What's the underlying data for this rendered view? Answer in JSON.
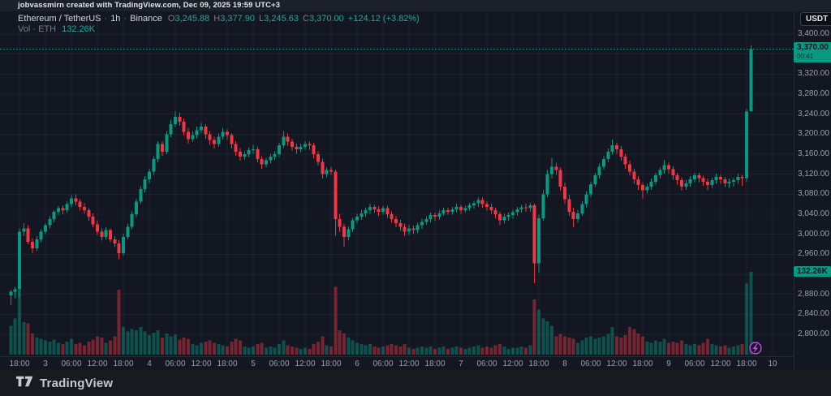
{
  "attribution": {
    "text": "jobvassmirn created with TradingView.com, Dec 09, 2025 19:59 UTC+3"
  },
  "legend": {
    "symbol": "Ethereum / TetherUS",
    "separator": "·",
    "interval": "1h",
    "exchange": "Binance",
    "ohlc": {
      "o_label": "O",
      "o": "3,245.88",
      "h_label": "H",
      "h": "3,377.90",
      "l_label": "L",
      "l": "3,245.63",
      "c_label": "C",
      "c": "3,370.00",
      "change": "+124.12 (+3.82%)"
    },
    "volume_row": {
      "label": "Vol · ETH",
      "value": "132.26K"
    }
  },
  "price_scale": {
    "currency_button": "USDT",
    "labels": [
      {
        "text": "3,400.00",
        "value": 3400
      },
      {
        "text": "3,320.00",
        "value": 3320
      },
      {
        "text": "3,280.00",
        "value": 3280
      },
      {
        "text": "3,240.00",
        "value": 3240
      },
      {
        "text": "3,200.00",
        "value": 3200
      },
      {
        "text": "3,160.00",
        "value": 3160
      },
      {
        "text": "3,120.00",
        "value": 3120
      },
      {
        "text": "3,080.00",
        "value": 3080
      },
      {
        "text": "3,040.00",
        "value": 3040
      },
      {
        "text": "3,000.00",
        "value": 3000
      },
      {
        "text": "2,960.00",
        "value": 2960
      },
      {
        "text": "2,920.00",
        "value": 2920
      },
      {
        "text": "2,880.00",
        "value": 2880
      },
      {
        "text": "2,840.00",
        "value": 2840
      },
      {
        "text": "2,800.00",
        "value": 2800
      }
    ]
  },
  "last_price_tag": {
    "price": "3,370.00",
    "countdown": "00:41",
    "value": 3370
  },
  "volume_tag": {
    "text": "132.26K",
    "value": 132.26
  },
  "time_scale": {
    "labels": [
      "18:00",
      "3",
      "06:00",
      "12:00",
      "18:00",
      "4",
      "06:00",
      "12:00",
      "18:00",
      "5",
      "06:00",
      "12:00",
      "18:00",
      "6",
      "06:00",
      "12:00",
      "18:00",
      "7",
      "06:00",
      "12:00",
      "18:00",
      "8",
      "06:00",
      "12:00",
      "18:00",
      "9",
      "06:00",
      "12:00",
      "18:00",
      "10"
    ]
  },
  "event_marker": {
    "icon": "lightning-icon",
    "color": "#b84fd6"
  },
  "footer": {
    "brand": "TradingView"
  },
  "colors": {
    "up": "#089981",
    "down": "#f23645",
    "accent_text": "#26a69a",
    "background": "#131722"
  },
  "chart_data": {
    "type": "candlestick",
    "title": "Ethereum / TetherUS · 1h · Binance",
    "symbol": "ETHUSDT",
    "exchange": "Binance",
    "interval": "1h",
    "x_start": "Dec 2 2025 16:00",
    "x_end": "Dec 9 2025 19:00",
    "price_axis_range": [
      2800,
      3400
    ],
    "grid": true,
    "volume_unit": "K ETH",
    "columns": [
      "open",
      "high",
      "low",
      "close",
      "volume_K"
    ],
    "last": {
      "open": 3245.88,
      "high": 3377.9,
      "low": 3245.63,
      "close": 3370.0,
      "change": "+124.12",
      "change_pct": "+3.82%",
      "volume": "132.26K",
      "countdown": "00:41"
    },
    "candles": [
      [
        2878,
        2888,
        2858,
        2885,
        46
      ],
      [
        2885,
        2895,
        2872,
        2890,
        58
      ],
      [
        2890,
        3012,
        2875,
        3005,
        103
      ],
      [
        3005,
        3022,
        2996,
        3012,
        52
      ],
      [
        3012,
        3018,
        2980,
        2985,
        50
      ],
      [
        2985,
        2992,
        2962,
        2972,
        34
      ],
      [
        2972,
        2996,
        2966,
        2990,
        27
      ],
      [
        2990,
        3010,
        2984,
        3005,
        25
      ],
      [
        3005,
        3022,
        3000,
        3018,
        23
      ],
      [
        3018,
        3036,
        3012,
        3030,
        21
      ],
      [
        3030,
        3048,
        3024,
        3045,
        24
      ],
      [
        3045,
        3056,
        3038,
        3052,
        19
      ],
      [
        3052,
        3058,
        3040,
        3048,
        17
      ],
      [
        3048,
        3065,
        3043,
        3060,
        21
      ],
      [
        3060,
        3078,
        3054,
        3072,
        25
      ],
      [
        3072,
        3080,
        3058,
        3065,
        17
      ],
      [
        3065,
        3070,
        3047,
        3055,
        19
      ],
      [
        3055,
        3062,
        3042,
        3048,
        15
      ],
      [
        3048,
        3052,
        3027,
        3035,
        21
      ],
      [
        3035,
        3042,
        3014,
        3020,
        24
      ],
      [
        3020,
        3028,
        2999,
        3005,
        29
      ],
      [
        3005,
        3012,
        2987,
        2995,
        27
      ],
      [
        2995,
        3015,
        2990,
        3008,
        19
      ],
      [
        3008,
        3012,
        2984,
        2990,
        23
      ],
      [
        2990,
        2996,
        2974,
        2982,
        29
      ],
      [
        2982,
        2988,
        2950,
        2962,
        104
      ],
      [
        2962,
        3001,
        2957,
        2995,
        44
      ],
      [
        2995,
        3021,
        2990,
        3015,
        37
      ],
      [
        3015,
        3046,
        3010,
        3040,
        41
      ],
      [
        3040,
        3071,
        3034,
        3065,
        39
      ],
      [
        3065,
        3096,
        3060,
        3090,
        44
      ],
      [
        3090,
        3116,
        3084,
        3110,
        37
      ],
      [
        3110,
        3131,
        3102,
        3125,
        31
      ],
      [
        3125,
        3156,
        3119,
        3150,
        35
      ],
      [
        3150,
        3186,
        3144,
        3180,
        39
      ],
      [
        3180,
        3186,
        3157,
        3165,
        27
      ],
      [
        3165,
        3206,
        3160,
        3200,
        34
      ],
      [
        3200,
        3229,
        3194,
        3220,
        29
      ],
      [
        3220,
        3246,
        3214,
        3235,
        32
      ],
      [
        3235,
        3243,
        3217,
        3225,
        24
      ],
      [
        3225,
        3231,
        3197,
        3205,
        27
      ],
      [
        3205,
        3212,
        3181,
        3190,
        25
      ],
      [
        3190,
        3206,
        3184,
        3198,
        17
      ],
      [
        3198,
        3216,
        3192,
        3208,
        15
      ],
      [
        3208,
        3223,
        3202,
        3215,
        19
      ],
      [
        3215,
        3220,
        3191,
        3200,
        21
      ],
      [
        3200,
        3206,
        3179,
        3188,
        23
      ],
      [
        3188,
        3195,
        3171,
        3180,
        19
      ],
      [
        3180,
        3201,
        3175,
        3195,
        17
      ],
      [
        3195,
        3213,
        3189,
        3205,
        15
      ],
      [
        3205,
        3210,
        3189,
        3198,
        13
      ],
      [
        3198,
        3202,
        3171,
        3180,
        21
      ],
      [
        3180,
        3186,
        3157,
        3165,
        25
      ],
      [
        3165,
        3172,
        3147,
        3155,
        23
      ],
      [
        3155,
        3166,
        3149,
        3160,
        13
      ],
      [
        3160,
        3173,
        3154,
        3168,
        11
      ],
      [
        3168,
        3179,
        3161,
        3170,
        13
      ],
      [
        3170,
        3175,
        3144,
        3150,
        17
      ],
      [
        3150,
        3156,
        3131,
        3140,
        19
      ],
      [
        3140,
        3153,
        3134,
        3148,
        11
      ],
      [
        3148,
        3161,
        3141,
        3155,
        13
      ],
      [
        3155,
        3166,
        3149,
        3160,
        11
      ],
      [
        3160,
        3183,
        3154,
        3178,
        17
      ],
      [
        3178,
        3206,
        3172,
        3195,
        23
      ],
      [
        3195,
        3201,
        3177,
        3185,
        15
      ],
      [
        3185,
        3191,
        3167,
        3175,
        13
      ],
      [
        3175,
        3181,
        3161,
        3170,
        11
      ],
      [
        3170,
        3181,
        3164,
        3175,
        9
      ],
      [
        3175,
        3186,
        3169,
        3180,
        11
      ],
      [
        3180,
        3185,
        3169,
        3178,
        9
      ],
      [
        3178,
        3183,
        3151,
        3160,
        17
      ],
      [
        3160,
        3166,
        3137,
        3145,
        21
      ],
      [
        3145,
        3151,
        3111,
        3120,
        29
      ],
      [
        3120,
        3133,
        3114,
        3128,
        15
      ],
      [
        3128,
        3135,
        3119,
        3125,
        13
      ],
      [
        3125,
        3129,
        2997,
        3030,
        108
      ],
      [
        3030,
        3041,
        3004,
        3015,
        39
      ],
      [
        3015,
        3021,
        2974,
        2995,
        34
      ],
      [
        2995,
        3016,
        2987,
        3010,
        27
      ],
      [
        3010,
        3033,
        3004,
        3028,
        23
      ],
      [
        3028,
        3041,
        3021,
        3035,
        19
      ],
      [
        3035,
        3049,
        3029,
        3042,
        17
      ],
      [
        3042,
        3053,
        3035,
        3048,
        15
      ],
      [
        3048,
        3061,
        3041,
        3055,
        17
      ],
      [
        3055,
        3059,
        3043,
        3050,
        13
      ],
      [
        3050,
        3056,
        3037,
        3045,
        11
      ],
      [
        3045,
        3057,
        3039,
        3052,
        13
      ],
      [
        3052,
        3057,
        3033,
        3040,
        15
      ],
      [
        3040,
        3046,
        3023,
        3030,
        17
      ],
      [
        3030,
        3037,
        3014,
        3022,
        15
      ],
      [
        3022,
        3029,
        3007,
        3015,
        13
      ],
      [
        3015,
        3021,
        2997,
        3005,
        17
      ],
      [
        3005,
        3019,
        2999,
        3012,
        11
      ],
      [
        3012,
        3017,
        3001,
        3008,
        9
      ],
      [
        3008,
        3023,
        3003,
        3018,
        11
      ],
      [
        3018,
        3031,
        3011,
        3025,
        13
      ],
      [
        3025,
        3036,
        3019,
        3030,
        11
      ],
      [
        3030,
        3043,
        3024,
        3038,
        13
      ],
      [
        3038,
        3043,
        3027,
        3035,
        9
      ],
      [
        3035,
        3047,
        3029,
        3042,
        11
      ],
      [
        3042,
        3053,
        3037,
        3048,
        13
      ],
      [
        3048,
        3053,
        3039,
        3045,
        9
      ],
      [
        3045,
        3055,
        3039,
        3050,
        11
      ],
      [
        3050,
        3061,
        3044,
        3055,
        13
      ],
      [
        3055,
        3059,
        3041,
        3048,
        11
      ],
      [
        3048,
        3057,
        3043,
        3052,
        9
      ],
      [
        3052,
        3063,
        3047,
        3058,
        11
      ],
      [
        3058,
        3067,
        3051,
        3062,
        13
      ],
      [
        3062,
        3073,
        3055,
        3068,
        15
      ],
      [
        3068,
        3073,
        3053,
        3060,
        11
      ],
      [
        3060,
        3065,
        3047,
        3055,
        13
      ],
      [
        3055,
        3061,
        3041,
        3048,
        11
      ],
      [
        3048,
        3053,
        3031,
        3040,
        15
      ],
      [
        3040,
        3045,
        3018,
        3028,
        17
      ],
      [
        3028,
        3041,
        3021,
        3035,
        13
      ],
      [
        3035,
        3043,
        3027,
        3038,
        9
      ],
      [
        3038,
        3049,
        3031,
        3044,
        11
      ],
      [
        3044,
        3055,
        3037,
        3050,
        11
      ],
      [
        3050,
        3059,
        3043,
        3054,
        13
      ],
      [
        3054,
        3061,
        3045,
        3052,
        11
      ],
      [
        3052,
        3063,
        3045,
        3058,
        15
      ],
      [
        3058,
        3061,
        2902,
        2942,
        88
      ],
      [
        2942,
        3039,
        2924,
        3032,
        72
      ],
      [
        3032,
        3089,
        3027,
        3080,
        58
      ],
      [
        3080,
        3129,
        3074,
        3120,
        53
      ],
      [
        3120,
        3153,
        3111,
        3135,
        46
      ],
      [
        3135,
        3143,
        3119,
        3128,
        29
      ],
      [
        3128,
        3133,
        3087,
        3095,
        33
      ],
      [
        3095,
        3103,
        3061,
        3070,
        29
      ],
      [
        3070,
        3079,
        3037,
        3045,
        27
      ],
      [
        3045,
        3053,
        3014,
        3030,
        25
      ],
      [
        3030,
        3049,
        3024,
        3042,
        19
      ],
      [
        3042,
        3066,
        3037,
        3060,
        23
      ],
      [
        3060,
        3086,
        3054,
        3080,
        27
      ],
      [
        3080,
        3106,
        3074,
        3100,
        29
      ],
      [
        3100,
        3123,
        3094,
        3118,
        25
      ],
      [
        3118,
        3141,
        3111,
        3135,
        27
      ],
      [
        3135,
        3156,
        3129,
        3150,
        29
      ],
      [
        3150,
        3171,
        3144,
        3165,
        33
      ],
      [
        3165,
        3189,
        3159,
        3178,
        44
      ],
      [
        3178,
        3183,
        3161,
        3170,
        29
      ],
      [
        3170,
        3176,
        3147,
        3155,
        27
      ],
      [
        3155,
        3161,
        3131,
        3140,
        31
      ],
      [
        3140,
        3147,
        3117,
        3125,
        44
      ],
      [
        3125,
        3131,
        3101,
        3110,
        41
      ],
      [
        3110,
        3116,
        3089,
        3098,
        34
      ],
      [
        3098,
        3103,
        3071,
        3088,
        29
      ],
      [
        3088,
        3101,
        3081,
        3095,
        21
      ],
      [
        3095,
        3111,
        3089,
        3105,
        19
      ],
      [
        3105,
        3123,
        3099,
        3118,
        23
      ],
      [
        3118,
        3133,
        3111,
        3128,
        21
      ],
      [
        3128,
        3149,
        3121,
        3138,
        25
      ],
      [
        3138,
        3143,
        3121,
        3130,
        19
      ],
      [
        3130,
        3136,
        3109,
        3118,
        21
      ],
      [
        3118,
        3123,
        3099,
        3108,
        19
      ],
      [
        3108,
        3113,
        3087,
        3095,
        23
      ],
      [
        3095,
        3109,
        3089,
        3102,
        17
      ],
      [
        3102,
        3116,
        3095,
        3110,
        15
      ],
      [
        3110,
        3123,
        3104,
        3118,
        17
      ],
      [
        3118,
        3123,
        3104,
        3112,
        15
      ],
      [
        3112,
        3117,
        3097,
        3105,
        19
      ],
      [
        3105,
        3111,
        3089,
        3098,
        25
      ],
      [
        3098,
        3113,
        3093,
        3108,
        17
      ],
      [
        3108,
        3121,
        3101,
        3115,
        15
      ],
      [
        3115,
        3119,
        3101,
        3110,
        13
      ],
      [
        3110,
        3115,
        3094,
        3102,
        15
      ],
      [
        3102,
        3111,
        3093,
        3105,
        11
      ],
      [
        3105,
        3113,
        3095,
        3108,
        13
      ],
      [
        3108,
        3121,
        3101,
        3115,
        15
      ],
      [
        3115,
        3119,
        3097,
        3112,
        17
      ],
      [
        3112,
        3251,
        3104,
        3245,
        114
      ],
      [
        3245.88,
        3377.9,
        3245.63,
        3370,
        132.26
      ]
    ]
  }
}
